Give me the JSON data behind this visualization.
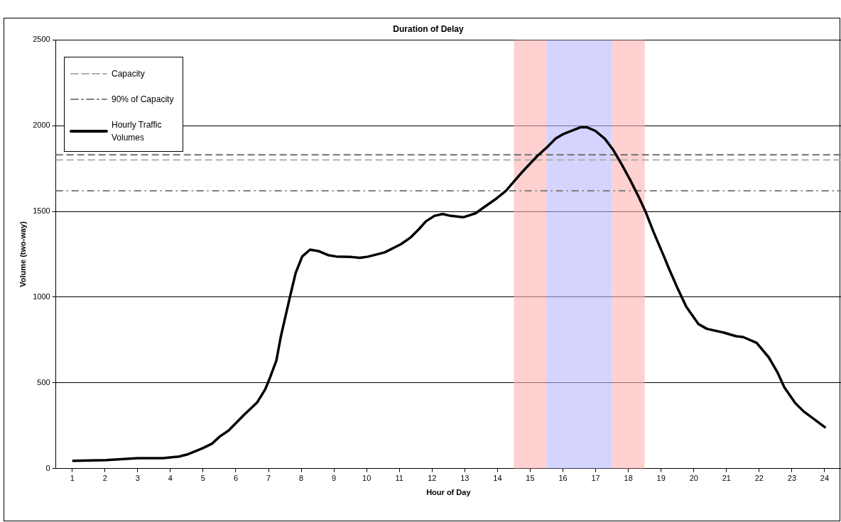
{
  "chart_data": {
    "type": "line",
    "title": "Duration of Delay",
    "xlabel": "Hour of Day",
    "ylabel": "Volume (two-way)",
    "xlim": [
      0.5,
      24.5
    ],
    "xticks": [
      1,
      2,
      3,
      4,
      5,
      6,
      7,
      8,
      9,
      10,
      11,
      12,
      13,
      14,
      15,
      16,
      17,
      18,
      19,
      20,
      21,
      22,
      23,
      24
    ],
    "ylim": [
      0,
      2500
    ],
    "yticks": [
      0,
      500,
      1000,
      1500,
      2000,
      2500
    ],
    "grid": "y",
    "legend": "top left",
    "marker": "none",
    "line_style": "solid",
    "series": [
      {
        "name": "Hourly Traffic Volumes",
        "color": "#000000",
        "x": [
          1,
          2.03,
          3,
          3.76,
          4.26,
          4.5,
          4.98,
          5.28,
          5.5,
          5.78,
          6.25,
          6.65,
          6.9,
          7.05,
          7.24,
          7.38,
          7.66,
          7.83,
          8.03,
          8.27,
          8.52,
          8.82,
          9.07,
          9.54,
          9.79,
          10.04,
          10.55,
          11.05,
          11.35,
          11.6,
          11.81,
          12.07,
          12.32,
          12.57,
          12.95,
          13.33,
          13.54,
          13.98,
          14.25,
          14.76,
          15.21,
          15.5,
          15.77,
          16.02,
          16.54,
          16.73,
          16.99,
          17.28,
          17.54,
          17.8,
          18.06,
          18.32,
          18.54,
          18.77,
          19.1,
          19.25,
          19.51,
          19.77,
          20.14,
          20.4,
          20.92,
          21.29,
          21.51,
          21.92,
          22.29,
          22.55,
          22.77,
          23.1,
          23.36,
          24.03
        ],
        "values": [
          45,
          49,
          60,
          60,
          70,
          81,
          118,
          146,
          185,
          222,
          313,
          385,
          462,
          533,
          630,
          773,
          1005,
          1141,
          1237,
          1277,
          1269,
          1245,
          1237,
          1234,
          1229,
          1236,
          1261,
          1309,
          1349,
          1397,
          1442,
          1474,
          1485,
          1474,
          1466,
          1489,
          1518,
          1577,
          1619,
          1731,
          1822,
          1872,
          1924,
          1952,
          1991,
          1991,
          1970,
          1924,
          1858,
          1773,
          1682,
          1583,
          1492,
          1380,
          1232,
          1162,
          1049,
          944,
          843,
          815,
          793,
          772,
          767,
          733,
          649,
          564,
          473,
          382,
          333,
          238
        ]
      }
    ],
    "ref_lines": [
      {
        "axis": "y",
        "value": 1830,
        "color": "#707070",
        "line_style": "dashed"
      },
      {
        "axis": "y",
        "value": 1800,
        "label": "Capacity",
        "color": "#b0b0b0",
        "line_style": "dashed"
      },
      {
        "axis": "y",
        "value": 1620,
        "label": "90% of Capacity",
        "color": "#808080",
        "line_style": "dashdot"
      }
    ],
    "bands": [
      {
        "axis": "x",
        "from": 14.5,
        "to": 15.5,
        "color": "#ffb0b0"
      },
      {
        "axis": "x",
        "from": 15.5,
        "to": 17.5,
        "color": "#b8b8ff"
      },
      {
        "axis": "x",
        "from": 17.5,
        "to": 18.5,
        "color": "#ffb0b0"
      }
    ]
  }
}
